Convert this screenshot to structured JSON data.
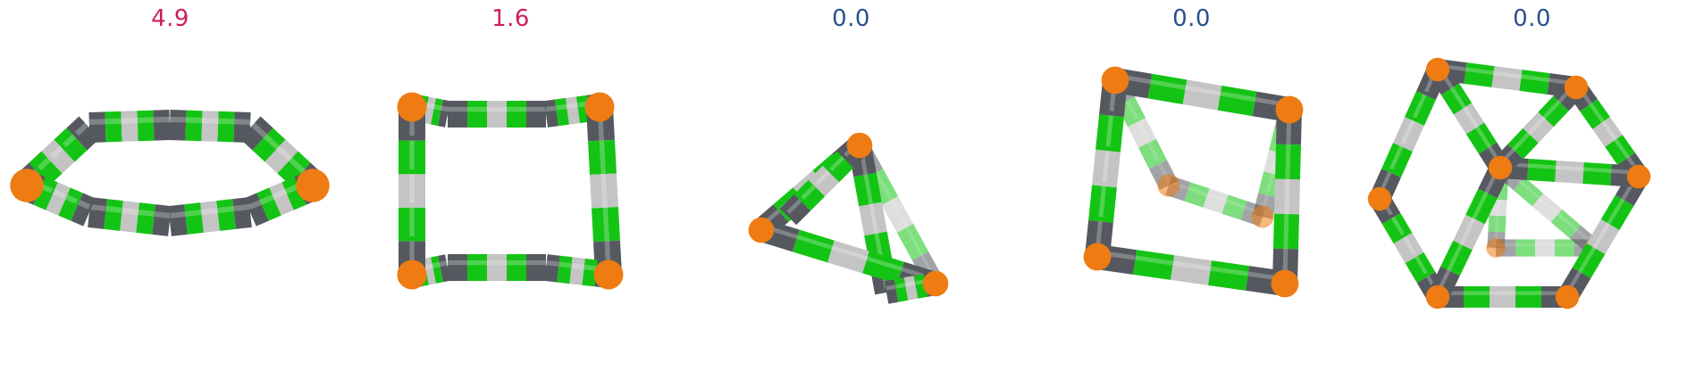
{
  "panels": [
    {
      "value": "4.9",
      "color": "#cc1f5e"
    },
    {
      "value": "1.6",
      "color": "#cc1f5e"
    },
    {
      "value": "0.0",
      "color": "#2a4f8e"
    },
    {
      "value": "0.0",
      "color": "#2a4f8e"
    },
    {
      "value": "0.0",
      "color": "#2a4f8e"
    }
  ],
  "colors": {
    "node": "#ee7c12",
    "dark": "#55595f",
    "green": "#14c414",
    "light": "#c4c4c4"
  }
}
